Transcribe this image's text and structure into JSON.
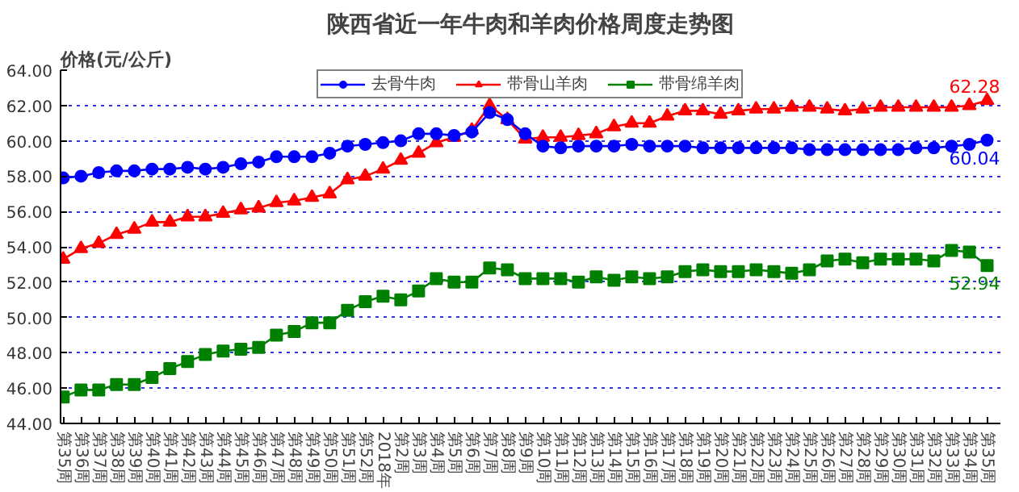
{
  "chart_data": {
    "type": "line",
    "title": "陕西省近一年牛肉和羊肉价格周度走势图",
    "ylabel": "价格(元/公斤)",
    "categories": [
      "第35周",
      "第36周",
      "第37周",
      "第38周",
      "第39周",
      "第40周",
      "第41周",
      "第42周",
      "第43周",
      "第44周",
      "第45周",
      "第46周",
      "第47周",
      "第48周",
      "第49周",
      "第50周",
      "第51周",
      "第52周",
      "2018年",
      "第2周",
      "第3周",
      "第4周",
      "第5周",
      "第6周",
      "第7周",
      "第8周",
      "第9周",
      "第10周",
      "第11周",
      "第12周",
      "第13周",
      "第14周",
      "第15周",
      "第16周",
      "第17周",
      "第18周",
      "第19周",
      "第20周",
      "第21周",
      "第22周",
      "第23周",
      "第24周",
      "第25周",
      "第26周",
      "第27周",
      "第28周",
      "第29周",
      "第30周",
      "第31周",
      "第32周",
      "第33周",
      "第34周",
      "第35周"
    ],
    "series": [
      {
        "name": "去骨牛肉",
        "color": "#0000ff",
        "marker": "circle",
        "values": [
          57.9,
          58.0,
          58.2,
          58.3,
          58.3,
          58.4,
          58.4,
          58.5,
          58.4,
          58.5,
          58.7,
          58.8,
          59.1,
          59.1,
          59.1,
          59.3,
          59.7,
          59.8,
          59.9,
          60.0,
          60.4,
          60.4,
          60.3,
          60.5,
          61.6,
          61.2,
          60.4,
          59.7,
          59.6,
          59.7,
          59.7,
          59.7,
          59.8,
          59.7,
          59.7,
          59.7,
          59.6,
          59.6,
          59.6,
          59.6,
          59.6,
          59.6,
          59.5,
          59.5,
          59.5,
          59.5,
          59.5,
          59.5,
          59.6,
          59.6,
          59.7,
          59.8,
          60.04
        ],
        "value_labels": [
          null,
          null,
          null,
          null,
          null,
          null,
          null,
          null,
          null,
          null,
          null,
          null,
          null,
          null,
          null,
          null,
          null,
          null,
          null,
          null,
          null,
          null,
          null,
          null,
          null,
          null,
          null,
          null,
          null,
          null,
          null,
          null,
          null,
          null,
          null,
          null,
          null,
          null,
          null,
          null,
          null,
          null,
          null,
          null,
          null,
          null,
          null,
          null,
          null,
          null,
          null,
          null,
          "60.04"
        ]
      },
      {
        "name": "带骨山羊肉",
        "color": "#ff0000",
        "marker": "triangle",
        "values": [
          53.3,
          53.9,
          54.2,
          54.7,
          55.0,
          55.4,
          55.4,
          55.7,
          55.7,
          55.9,
          56.1,
          56.2,
          56.5,
          56.6,
          56.8,
          57.0,
          57.8,
          58.0,
          58.4,
          58.9,
          59.3,
          59.9,
          60.2,
          60.6,
          62.0,
          61.2,
          60.1,
          60.2,
          60.2,
          60.3,
          60.4,
          60.8,
          61.0,
          61.0,
          61.4,
          61.7,
          61.7,
          61.5,
          61.7,
          61.8,
          61.8,
          61.9,
          61.9,
          61.8,
          61.7,
          61.8,
          61.9,
          61.9,
          61.9,
          61.9,
          61.9,
          62.0,
          62.28
        ],
        "value_labels": [
          null,
          null,
          null,
          null,
          null,
          null,
          null,
          null,
          null,
          null,
          null,
          null,
          null,
          null,
          null,
          null,
          null,
          null,
          null,
          null,
          null,
          null,
          null,
          null,
          null,
          null,
          null,
          null,
          null,
          null,
          null,
          null,
          null,
          null,
          null,
          null,
          null,
          null,
          null,
          null,
          null,
          null,
          null,
          null,
          null,
          null,
          null,
          null,
          null,
          null,
          null,
          null,
          "62.28"
        ]
      },
      {
        "name": "带骨绵羊肉",
        "color": "#008000",
        "marker": "square",
        "values": [
          45.5,
          45.9,
          45.9,
          46.2,
          46.2,
          46.6,
          47.1,
          47.5,
          47.9,
          48.1,
          48.2,
          48.3,
          49.0,
          49.2,
          49.7,
          49.7,
          50.4,
          50.9,
          51.2,
          51.0,
          51.5,
          52.2,
          52.0,
          52.0,
          52.8,
          52.7,
          52.2,
          52.2,
          52.2,
          52.0,
          52.3,
          52.1,
          52.3,
          52.2,
          52.3,
          52.6,
          52.7,
          52.6,
          52.6,
          52.7,
          52.6,
          52.5,
          52.7,
          53.2,
          53.3,
          53.1,
          53.3,
          53.3,
          53.3,
          53.2,
          53.8,
          53.7,
          52.94
        ],
        "value_labels": [
          null,
          null,
          null,
          null,
          null,
          null,
          null,
          null,
          null,
          null,
          null,
          null,
          null,
          null,
          null,
          null,
          null,
          null,
          null,
          null,
          null,
          null,
          null,
          null,
          null,
          null,
          null,
          null,
          null,
          null,
          null,
          null,
          null,
          null,
          null,
          null,
          null,
          null,
          null,
          null,
          null,
          null,
          null,
          null,
          null,
          null,
          null,
          null,
          null,
          null,
          null,
          null,
          "52.94"
        ]
      }
    ],
    "ylim": [
      44,
      64
    ],
    "yticks": [
      {
        "value": 44,
        "label": "44.00"
      },
      {
        "value": 46,
        "label": "46.00"
      },
      {
        "value": 48,
        "label": "48.00"
      },
      {
        "value": 50,
        "label": "50.00"
      },
      {
        "value": 52,
        "label": "52.00"
      },
      {
        "value": 54,
        "label": "54.00"
      },
      {
        "value": 56,
        "label": "56.00"
      },
      {
        "value": 58,
        "label": "58.00"
      },
      {
        "value": 60,
        "label": "60.00"
      },
      {
        "value": 62,
        "label": "62.00"
      },
      {
        "value": 64,
        "label": "64.00"
      }
    ],
    "grid": "y",
    "legend": "top",
    "line_style": "solid"
  }
}
